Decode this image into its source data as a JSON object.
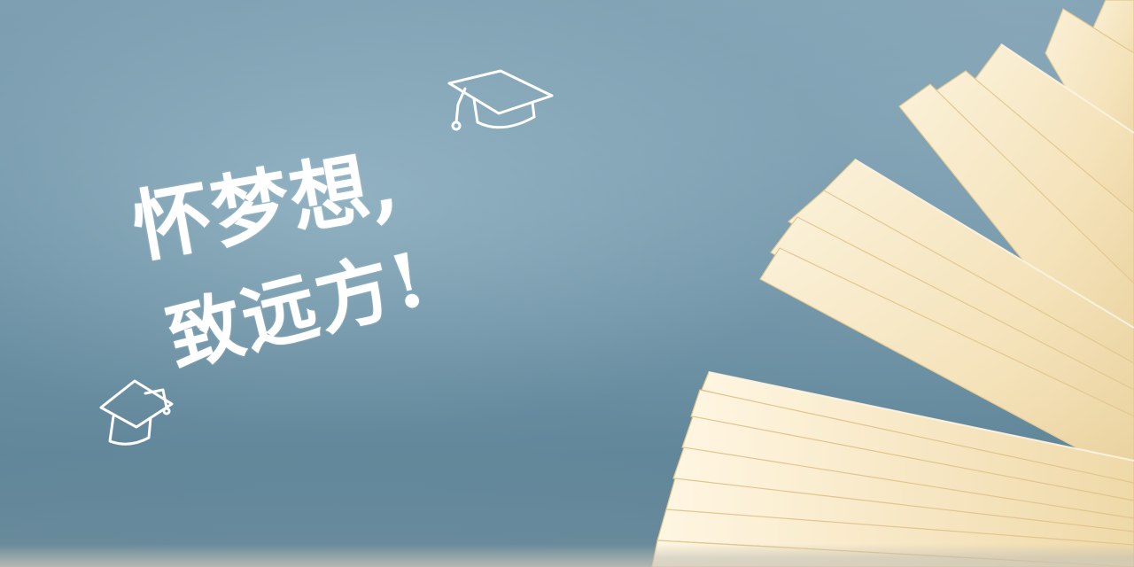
{
  "headline": {
    "line1": "怀梦想,",
    "line2": "致远方!"
  },
  "colors": {
    "chalkboard": "#6f93a6",
    "chalk_text": "#ffffff",
    "paper": "#f6e7c4"
  },
  "icons": [
    "graduation-cap-icon",
    "graduation-cap-icon"
  ]
}
